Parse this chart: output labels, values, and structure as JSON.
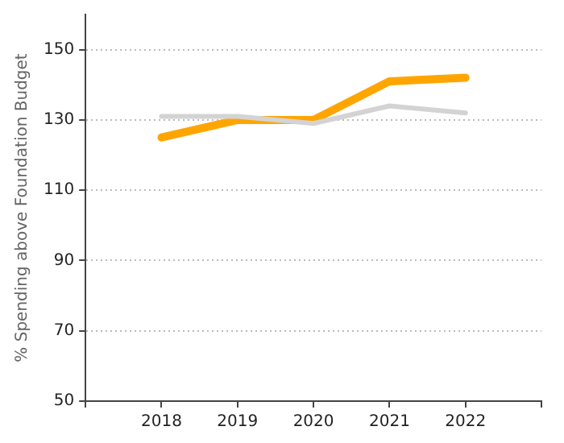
{
  "chart_data": {
    "type": "line",
    "ylabel": "% Spending above Foundation Budget",
    "x": [
      2018,
      2019,
      2020,
      2021,
      2022
    ],
    "series": [
      {
        "color": "#d3d3d3",
        "values": [
          131,
          131,
          129,
          134,
          132
        ]
      },
      {
        "color": "#ffa500",
        "values": [
          125,
          130,
          130,
          141,
          142
        ]
      }
    ],
    "xlim": [
      2017,
      2023
    ],
    "xticks": [
      {
        "value": 2017,
        "label": null
      },
      2018,
      2019,
      2020,
      2021,
      2022,
      {
        "value": 2023,
        "label": null
      }
    ],
    "ylim": [
      50,
      160
    ],
    "yticks": [
      50,
      70,
      90,
      110,
      130,
      150
    ],
    "grid": "y",
    "legend": false,
    "marker": "none",
    "line_style": "solid"
  }
}
